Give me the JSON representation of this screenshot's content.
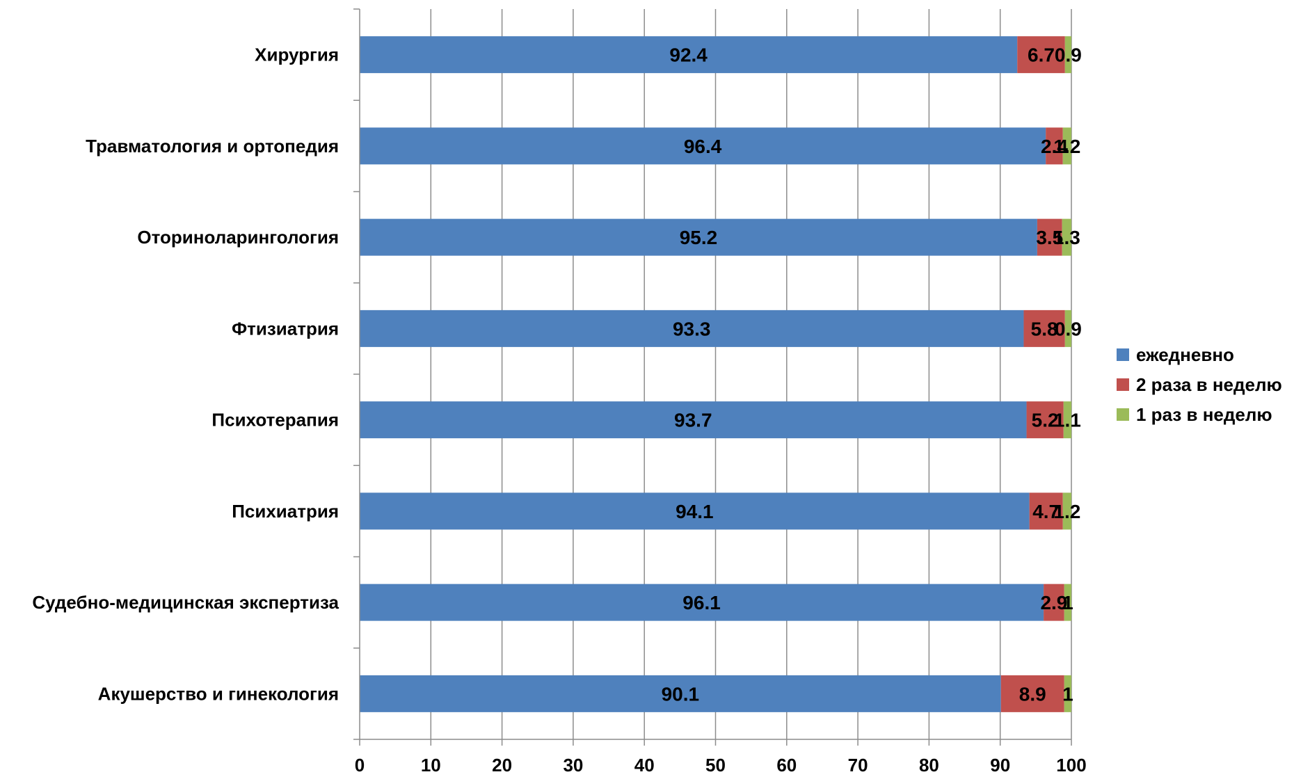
{
  "chart_data": {
    "type": "bar",
    "orientation": "horizontal",
    "stacked": true,
    "title": "",
    "xlabel": "",
    "ylabel": "",
    "xlim": [
      0,
      100
    ],
    "x_ticks": [
      "0",
      "10",
      "20",
      "30",
      "40",
      "50",
      "60",
      "70",
      "80",
      "90",
      "100"
    ],
    "grid": "vertical",
    "legend_position": "right",
    "categories": [
      "Хирургия",
      "Травматология и ортопедия",
      "Оториноларингология",
      "Фтизиатрия",
      "Психотерапия",
      "Психиатрия",
      "Судебно-медицинская экспертиза",
      "Акушерство и гинекология"
    ],
    "series": [
      {
        "name": "ежедневно",
        "color": "#4F81BD",
        "values": [
          92.4,
          96.4,
          95.2,
          93.3,
          93.7,
          94.1,
          96.1,
          90.1
        ]
      },
      {
        "name": "2 раза в неделю",
        "color": "#C0504D",
        "values": [
          6.7,
          2.4,
          3.5,
          5.8,
          5.2,
          4.7,
          2.9,
          8.9
        ]
      },
      {
        "name": "1 раз в неделю",
        "color": "#9BBB59",
        "values": [
          0.9,
          1.2,
          1.3,
          0.9,
          1.1,
          1.2,
          1,
          1
        ]
      }
    ],
    "data_labels": [
      [
        "92.4",
        "96.4",
        "95.2",
        "93.3",
        "93.7",
        "94.1",
        "96.1",
        "90.1"
      ],
      [
        "6.7",
        "2.4",
        "3.5",
        "5.8",
        "5.2",
        "4.7",
        "2.9",
        "8.9"
      ],
      [
        "0.9",
        "1.2",
        "1.3",
        "0.9",
        "1.1",
        "1.2",
        "1",
        "1"
      ]
    ]
  }
}
